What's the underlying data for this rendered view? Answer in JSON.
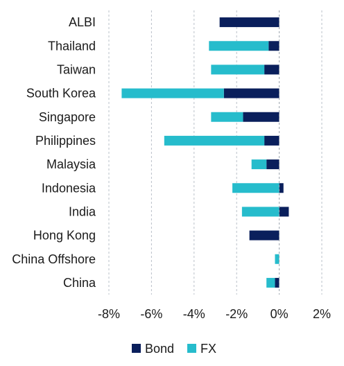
{
  "chart_data": {
    "type": "bar",
    "orientation": "horizontal",
    "stacked": true,
    "categories": [
      "ALBI",
      "Thailand",
      "Taiwan",
      "South Korea",
      "Singapore",
      "Philippines",
      "Malaysia",
      "Indonesia",
      "India",
      "Hong Kong",
      "China Offshore",
      "China"
    ],
    "series": [
      {
        "name": "Bond",
        "color": "#0a1f5c",
        "values": [
          -2.8,
          -0.5,
          -0.7,
          -2.6,
          -1.7,
          -0.7,
          -0.6,
          0.2,
          0.45,
          -1.4,
          0.0,
          -0.2
        ]
      },
      {
        "name": "FX",
        "color": "#26bccc",
        "values": [
          0.0,
          -2.8,
          -2.5,
          -4.8,
          -1.5,
          -4.7,
          -0.7,
          -2.2,
          -1.75,
          0.0,
          -0.2,
          -0.4
        ]
      }
    ],
    "xlim": [
      -8,
      2
    ],
    "xticks": [
      -8,
      -6,
      -4,
      -2,
      0,
      2
    ],
    "xtick_labels": [
      "-8%",
      "-6%",
      "-4%",
      "-2%",
      "0%",
      "2%"
    ],
    "grid": {
      "vertical": true,
      "horizontal": false
    },
    "legend_placement": "bottom-center"
  }
}
